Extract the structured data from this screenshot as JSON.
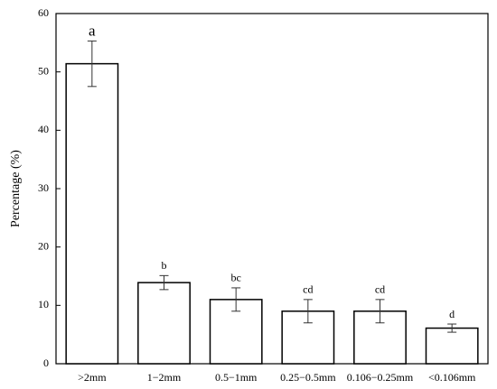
{
  "chart_data": {
    "type": "bar",
    "y_label": "Percentage (%)",
    "categories": [
      ">2mm",
      "1−2mm",
      "0.5−1mm",
      "0.25−0.5mm",
      "0.106−0.25mm",
      "<0.106mm"
    ],
    "values": [
      51.4,
      13.9,
      11.0,
      9.0,
      9.0,
      6.1
    ],
    "errors": [
      3.9,
      1.2,
      2.0,
      2.0,
      2.0,
      0.7
    ],
    "significance_letters": [
      "a",
      "b",
      "bc",
      "cd",
      "cd",
      "d"
    ],
    "color": "#ffffff",
    "ylim": [
      0,
      60
    ],
    "yticks": [
      0,
      10,
      20,
      30,
      40,
      50,
      60
    ],
    "grid": false
  }
}
